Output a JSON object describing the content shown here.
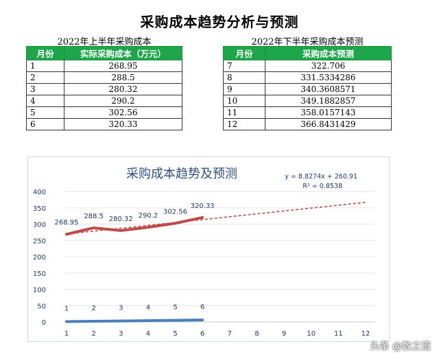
{
  "page": {
    "title": "采购成本趋势分析与预测"
  },
  "first_half": {
    "caption": "2022年上半年采购成本",
    "headers": [
      "月份",
      "实际采购成本（万元）"
    ],
    "rows": [
      [
        "1",
        "268.95"
      ],
      [
        "2",
        "288.5"
      ],
      [
        "3",
        "280.32"
      ],
      [
        "4",
        "290.2"
      ],
      [
        "5",
        "302.56"
      ],
      [
        "6",
        "320.33"
      ]
    ]
  },
  "second_half": {
    "caption": "2022年下半年采购成本预测",
    "headers": [
      "月份",
      "采购成本预测"
    ],
    "rows": [
      [
        "7",
        "322.706"
      ],
      [
        "8",
        "331.5334286"
      ],
      [
        "9",
        "340.3608571"
      ],
      [
        "10",
        "349.1882857"
      ],
      [
        "11",
        "358.0157143"
      ],
      [
        "12",
        "366.8431429"
      ]
    ]
  },
  "chart_data": {
    "type": "line",
    "title": "采购成本趋势及预测",
    "x": [
      1,
      2,
      3,
      4,
      5,
      6,
      7,
      8,
      9,
      10,
      11,
      12
    ],
    "xlim": [
      1,
      12
    ],
    "ylim": [
      0,
      400
    ],
    "yticks": [
      0,
      50,
      100,
      150,
      200,
      250,
      300,
      350,
      400
    ],
    "grid": true,
    "series": [
      {
        "x": [
          1,
          2,
          3,
          4,
          5,
          6
        ],
        "values": [
          1,
          2,
          3,
          4,
          5,
          6
        ],
        "labels": [
          "1",
          "2",
          "3",
          "4",
          "5",
          "6"
        ],
        "color": "#4a7ebb"
      },
      {
        "x": [
          1,
          2,
          3,
          4,
          5,
          6
        ],
        "values": [
          268.95,
          288.5,
          280.32,
          290.2,
          302.56,
          320.33
        ],
        "labels": [
          "268.95",
          "288.5",
          "280.32",
          "290.2",
          "302.56",
          "320.33"
        ],
        "color": "#be4b48"
      }
    ],
    "trendline": {
      "slope": 8.8274,
      "intercept": 260.91,
      "x_range": [
        1,
        12
      ],
      "color": "#be4b48",
      "equation": "y = 8.8274x + 260.91",
      "r2": "R² = 0.8538"
    }
  },
  "watermark": "头条 @数之道"
}
